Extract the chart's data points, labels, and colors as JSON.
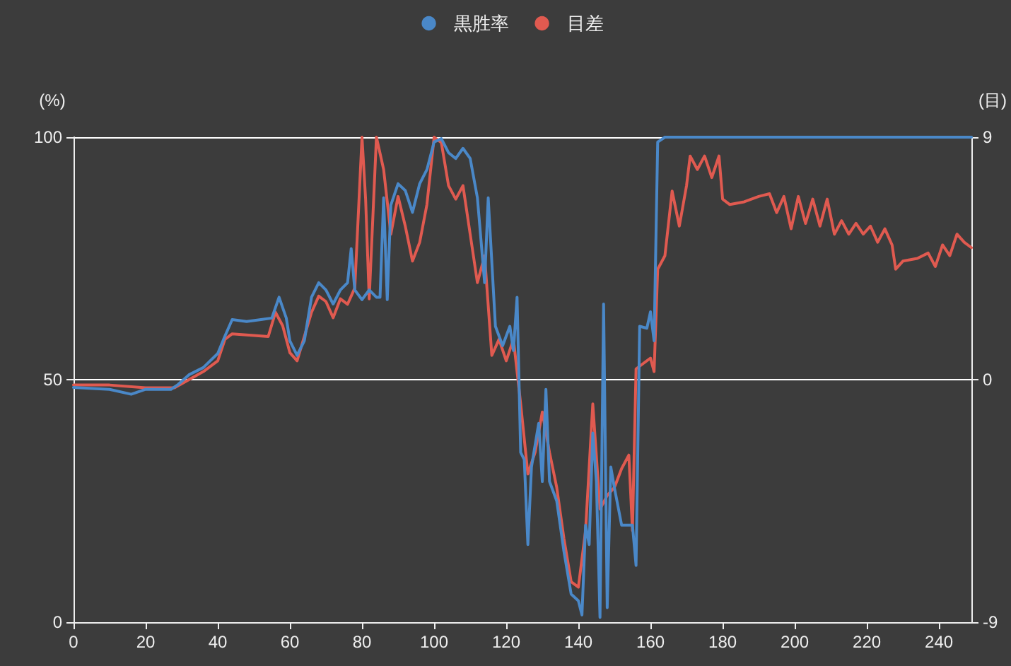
{
  "chart_data": {
    "type": "line",
    "ylabel": "(%)",
    "y2label": "(目)",
    "xlim": [
      0,
      249
    ],
    "xticks": [
      0,
      20,
      40,
      60,
      80,
      100,
      120,
      140,
      160,
      180,
      200,
      220,
      240
    ],
    "ylim": [
      0,
      100
    ],
    "yticks": [
      0,
      50,
      100
    ],
    "y2lim": [
      -9,
      9
    ],
    "y2ticks": [
      -9,
      0,
      9
    ],
    "grid": "y",
    "legend": "top",
    "marker": "none",
    "line_style": "solid",
    "series": [
      {
        "name": "黒胜率",
        "color": "#4a88c8",
        "x": [
          0,
          10,
          16,
          20,
          27,
          29,
          32,
          36,
          40,
          42,
          44,
          48,
          52,
          55,
          57,
          59,
          60,
          62,
          64,
          66,
          68,
          70,
          72,
          74,
          76,
          77,
          78,
          80,
          82,
          84,
          85,
          86,
          87,
          88,
          90,
          92,
          94,
          96,
          98,
          100,
          102,
          104,
          106,
          108,
          110,
          112,
          114,
          115,
          117,
          119,
          121,
          122,
          123,
          124,
          125,
          126,
          127,
          129,
          130,
          131,
          132,
          134,
          136,
          138,
          140,
          141,
          142,
          143,
          144,
          145,
          146,
          147,
          148,
          149,
          150,
          152,
          155,
          156,
          157,
          159,
          160,
          161,
          162,
          164,
          170,
          190,
          210,
          230,
          249
        ],
        "values": [
          48.4,
          48,
          47,
          48,
          48,
          49,
          51,
          52.5,
          55.4,
          59,
          62.4,
          62,
          62.4,
          62.7,
          67,
          62.7,
          58,
          55,
          58,
          67,
          70,
          68.5,
          65.6,
          68.5,
          70,
          77,
          68.5,
          66.5,
          68.5,
          67,
          67,
          87.5,
          66.5,
          86,
          90.4,
          89,
          84.5,
          90.4,
          93.3,
          99,
          99.7,
          96.8,
          95.6,
          97.7,
          95.6,
          87.5,
          70,
          87.5,
          61,
          57,
          61,
          56,
          67,
          35,
          33.5,
          16,
          32,
          41,
          29,
          48,
          29,
          25,
          14.6,
          5.8,
          4.4,
          1.5,
          20,
          16,
          39,
          29,
          1,
          65.6,
          3,
          32,
          27.7,
          20,
          20,
          11.7,
          61,
          60.6,
          64,
          58,
          99,
          100,
          100,
          100,
          100,
          100,
          100
        ]
      },
      {
        "name": "目差",
        "color": "#e05a50",
        "axis": "y2",
        "x": [
          0,
          10,
          20,
          28,
          32,
          36,
          40,
          42,
          44,
          54,
          56,
          58,
          60,
          62,
          66,
          68,
          70,
          72,
          74,
          76,
          78,
          80,
          81,
          82,
          84,
          86,
          88,
          90,
          92,
          94,
          96,
          98,
          100,
          102,
          104,
          106,
          108,
          110,
          112,
          114,
          116,
          118,
          120,
          122,
          124,
          126,
          128,
          130,
          132,
          134,
          136,
          138,
          140,
          142,
          144,
          146,
          148,
          150,
          152,
          154,
          155,
          156,
          160,
          161,
          162,
          164,
          166,
          168,
          170,
          171,
          173,
          175,
          177,
          179,
          180,
          182,
          186,
          190,
          193,
          195,
          197,
          199,
          201,
          203,
          205,
          207,
          209,
          211,
          213,
          215,
          217,
          219,
          221,
          223,
          225,
          227,
          228,
          230,
          234,
          237,
          239,
          241,
          243,
          245,
          247,
          249
        ],
        "values": [
          -0.2,
          -0.2,
          -0.3,
          -0.3,
          0,
          0.3,
          0.7,
          1.5,
          1.7,
          1.6,
          2.5,
          2,
          1,
          0.7,
          2.5,
          3.1,
          2.9,
          2.3,
          3,
          2.8,
          3.4,
          9,
          6.7,
          3,
          9,
          7.8,
          5.4,
          6.8,
          5.7,
          4.4,
          5.1,
          6.5,
          9,
          8.8,
          7.2,
          6.7,
          7.2,
          5.4,
          3.6,
          4.6,
          0.9,
          1.5,
          0.7,
          1.5,
          -0.9,
          -3.5,
          -2.7,
          -1.2,
          -2.7,
          -4,
          -5.9,
          -7.5,
          -7.7,
          -5.6,
          -0.9,
          -4.8,
          -4.3,
          -4,
          -3.3,
          -2.8,
          -5.6,
          0.4,
          0.8,
          0.3,
          4.1,
          4.6,
          7,
          5.7,
          7.2,
          8.3,
          7.8,
          8.3,
          7.5,
          8.3,
          6.7,
          6.5,
          6.6,
          6.8,
          6.9,
          6.2,
          6.8,
          5.6,
          6.8,
          5.8,
          6.7,
          5.7,
          6.7,
          5.4,
          5.9,
          5.4,
          5.8,
          5.4,
          5.7,
          5.1,
          5.6,
          5,
          4.1,
          4.4,
          4.5,
          4.7,
          4.2,
          5,
          4.6,
          5.4,
          5.1,
          4.9
        ]
      }
    ]
  }
}
